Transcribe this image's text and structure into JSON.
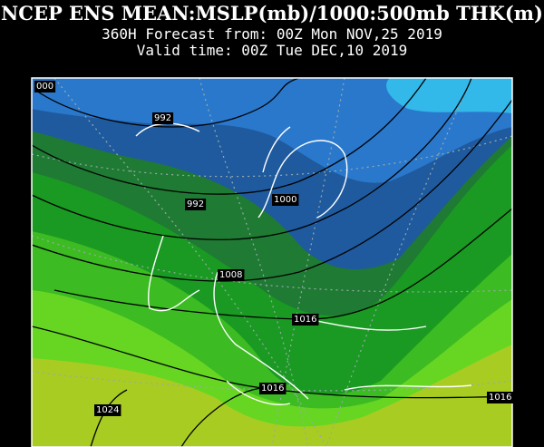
{
  "header": {
    "title": "NCEP ENS MEAN:MSLP(mb)/1000:500mb THK(m)",
    "forecast": "360H Forecast from: 00Z Mon NOV,25 2019",
    "valid_time": "Valid time: 00Z Tue DEC,10 2019"
  },
  "map": {
    "contour_labels": [
      "000",
      "992",
      "992",
      "1000",
      "1008",
      "1016",
      "1016",
      "1016",
      "1024"
    ]
  }
}
